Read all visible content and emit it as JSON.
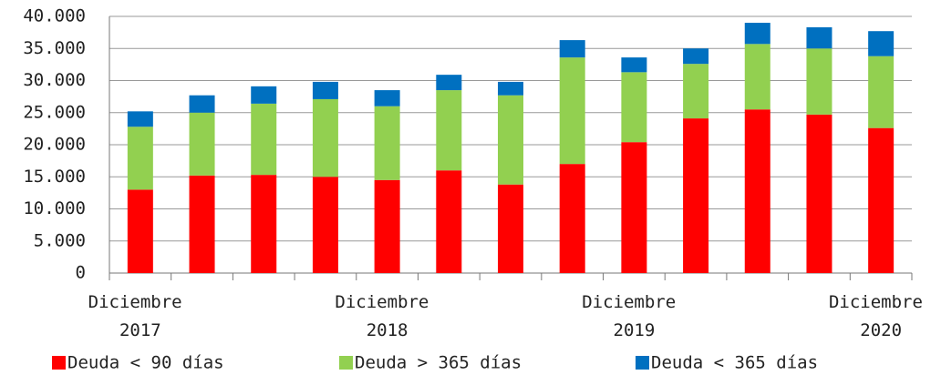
{
  "chart_data": {
    "type": "stacked_bar",
    "categories": [
      "Diciembre 2017",
      null,
      null,
      null,
      "Diciembre 2018",
      null,
      null,
      null,
      "Diciembre 2019",
      null,
      null,
      null,
      "Diciembre 2020"
    ],
    "series": [
      {
        "name": "Deuda < 90 días",
        "color": "#ff0000",
        "values": [
          13000,
          15200,
          15300,
          15000,
          14500,
          16000,
          13800,
          17000,
          20400,
          24100,
          25500,
          24700,
          22600
        ]
      },
      {
        "name": "Deuda > 365 días",
        "color": "#92d050",
        "values": [
          9800,
          9800,
          11100,
          12100,
          11500,
          12500,
          13900,
          16600,
          10900,
          8500,
          10200,
          10300,
          11200
        ]
      },
      {
        "name": "Deuda < 365 días",
        "color": "#0070c0",
        "values": [
          2400,
          2700,
          2700,
          2700,
          2500,
          2400,
          2100,
          2700,
          2300,
          2400,
          3300,
          3300,
          3900
        ]
      }
    ],
    "ylim": [
      0,
      40000
    ],
    "yticks": [
      0,
      {
        "value": 5000,
        "label": "5.000"
      },
      {
        "value": 10000,
        "label": "10.000"
      },
      {
        "value": 15000,
        "label": "15.000"
      },
      {
        "value": 20000,
        "label": "20.000"
      },
      {
        "value": 25000,
        "label": "25.000"
      },
      {
        "value": 30000,
        "label": "30.000"
      },
      {
        "value": 35000,
        "label": "35.000"
      },
      {
        "value": 40000,
        "label": "40.000"
      }
    ],
    "grid": true,
    "legend": "bottom"
  }
}
